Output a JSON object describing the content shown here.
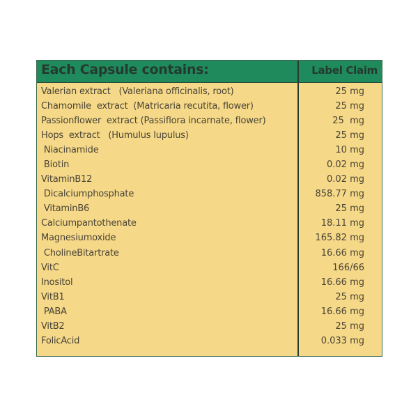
{
  "header": {
    "title": "Each Capsule contains:",
    "claim_label": "Label Claim"
  },
  "colors": {
    "header": "#1f8a5c",
    "background": "#f5d888",
    "text": "#4a4436"
  },
  "rows": [
    {
      "name": "Valerian extract   (Valeriana officinalis, root)",
      "value": "25 mg"
    },
    {
      "name": "Chamomile  extract  (Matricaria recutita, flower)",
      "value": "25 mg"
    },
    {
      "name": "Passionflower  extract (Passiflora incarnate, flower)",
      "value": "25  mg"
    },
    {
      "name": "Hops  extract   (Humulus lupulus)",
      "value": "25 mg"
    },
    {
      "name": " Niacinamide",
      "value": "10 mg"
    },
    {
      "name": " Biotin",
      "value": "0.02 mg"
    },
    {
      "name": "VitaminB12",
      "value": "0.02 mg"
    },
    {
      "name": " Dicalciumphosphate",
      "value": "858.77 mg"
    },
    {
      "name": " VitaminB6",
      "value": "25 mg"
    },
    {
      "name": "Calciumpantothenate",
      "value": "18.11 mg"
    },
    {
      "name": "Magnesiumoxide",
      "value": "165.82 mg"
    },
    {
      "name": " CholineBitartrate",
      "value": "16.66 mg"
    },
    {
      "name": "VitC",
      "value": "166/66"
    },
    {
      "name": "Inositol",
      "value": "16.66 mg"
    },
    {
      "name": "VitB1",
      "value": "25 mg"
    },
    {
      "name": " PABA",
      "value": "16.66 mg"
    },
    {
      "name": "VitB2",
      "value": "25 mg"
    },
    {
      "name": "FolicAcid",
      "value": "0.033 mg"
    }
  ]
}
